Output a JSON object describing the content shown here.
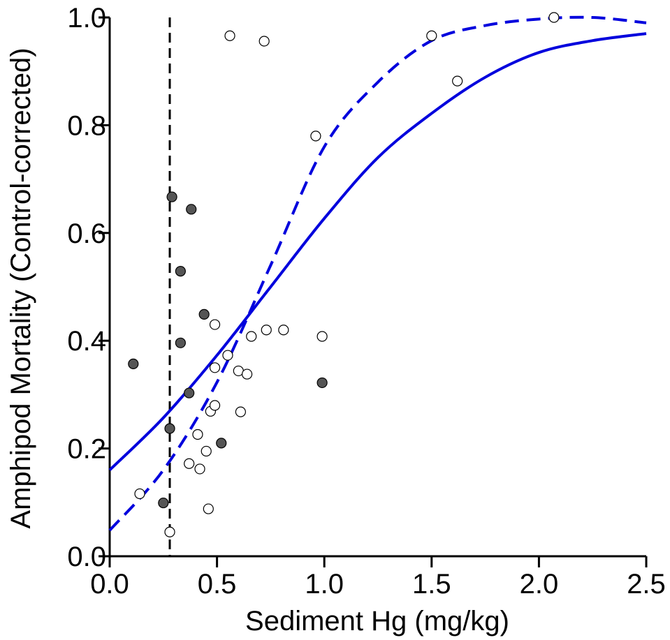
{
  "chart_data": {
    "type": "scatter",
    "title": "",
    "xlabel": "Sediment Hg (mg/kg)",
    "ylabel": "Amphipod Mortality (Control-corrected)",
    "xlim": [
      0.0,
      2.5
    ],
    "ylim": [
      0.0,
      1.0
    ],
    "xticks": [
      "0.0",
      "0.5",
      "1.0",
      "1.5",
      "2.0",
      "2.5"
    ],
    "yticks": [
      "0.0",
      "0.2",
      "0.4",
      "0.6",
      "0.8",
      "1.0"
    ],
    "grid": false,
    "colors": {
      "curve": "#0000dd",
      "filled": "#555555",
      "reference_line": "#000000"
    },
    "vertical_reference_line": {
      "x": 0.28,
      "style": "dashed"
    },
    "series": [
      {
        "marker": "filled-circle",
        "points": [
          [
            0.11,
            0.357
          ],
          [
            0.25,
            0.099
          ],
          [
            0.28,
            0.237
          ],
          [
            0.29,
            0.667
          ],
          [
            0.33,
            0.529
          ],
          [
            0.33,
            0.396
          ],
          [
            0.37,
            0.303
          ],
          [
            0.38,
            0.644
          ],
          [
            0.44,
            0.449
          ],
          [
            0.52,
            0.21
          ],
          [
            0.99,
            0.322
          ]
        ]
      },
      {
        "marker": "open-circle",
        "points": [
          [
            0.14,
            0.116
          ],
          [
            0.28,
            0.045
          ],
          [
            0.37,
            0.172
          ],
          [
            0.41,
            0.226
          ],
          [
            0.42,
            0.162
          ],
          [
            0.45,
            0.195
          ],
          [
            0.46,
            0.088
          ],
          [
            0.47,
            0.269
          ],
          [
            0.49,
            0.28
          ],
          [
            0.49,
            0.35
          ],
          [
            0.49,
            0.43
          ],
          [
            0.55,
            0.373
          ],
          [
            0.56,
            0.966
          ],
          [
            0.6,
            0.344
          ],
          [
            0.61,
            0.268
          ],
          [
            0.64,
            0.338
          ],
          [
            0.66,
            0.408
          ],
          [
            0.72,
            0.956
          ],
          [
            0.73,
            0.42
          ],
          [
            0.81,
            0.42
          ],
          [
            0.96,
            0.78
          ],
          [
            0.99,
            0.408
          ],
          [
            1.5,
            0.966
          ],
          [
            1.62,
            0.882
          ],
          [
            2.07,
            1.0
          ]
        ]
      },
      {
        "type": "line",
        "style": "solid",
        "points": [
          [
            0.0,
            0.16
          ],
          [
            0.25,
            0.257
          ],
          [
            0.5,
            0.373
          ],
          [
            0.75,
            0.5
          ],
          [
            1.0,
            0.627
          ],
          [
            1.25,
            0.74
          ],
          [
            1.5,
            0.822
          ],
          [
            1.75,
            0.889
          ],
          [
            2.0,
            0.935
          ],
          [
            2.25,
            0.957
          ],
          [
            2.5,
            0.97
          ]
        ]
      },
      {
        "type": "line",
        "style": "dashed",
        "points": [
          [
            0.0,
            0.048
          ],
          [
            0.25,
            0.16
          ],
          [
            0.5,
            0.323
          ],
          [
            0.75,
            0.54
          ],
          [
            1.0,
            0.76
          ],
          [
            1.25,
            0.88
          ],
          [
            1.5,
            0.957
          ],
          [
            1.75,
            0.985
          ],
          [
            2.0,
            0.997
          ],
          [
            2.25,
            1.0
          ],
          [
            2.5,
            0.99
          ]
        ]
      }
    ]
  }
}
